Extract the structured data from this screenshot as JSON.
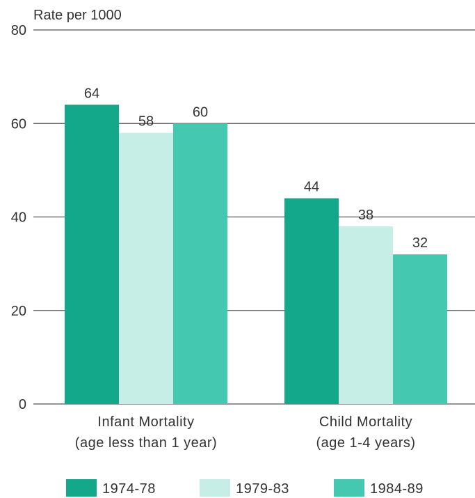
{
  "chart_data": {
    "type": "bar",
    "ylabel": "Rate per 1000",
    "ylim": [
      0,
      80
    ],
    "yticks": [
      "0",
      "20",
      "40",
      "60",
      "80"
    ],
    "categories": [
      {
        "line1": "Infant Mortality",
        "line2": "(age less than 1 year)"
      },
      {
        "line1": "Child Mortality",
        "line2": "(age 1-4 years)"
      }
    ],
    "series": [
      {
        "name": "1974-78",
        "color": "#14a88a",
        "values": [
          64,
          44
        ]
      },
      {
        "name": "1979-83",
        "color": "#c6eee6",
        "values": [
          58,
          38
        ]
      },
      {
        "name": "1984-89",
        "color": "#44c9b0",
        "values": [
          60,
          32
        ]
      }
    ],
    "grid": true,
    "legend_position": "bottom"
  }
}
